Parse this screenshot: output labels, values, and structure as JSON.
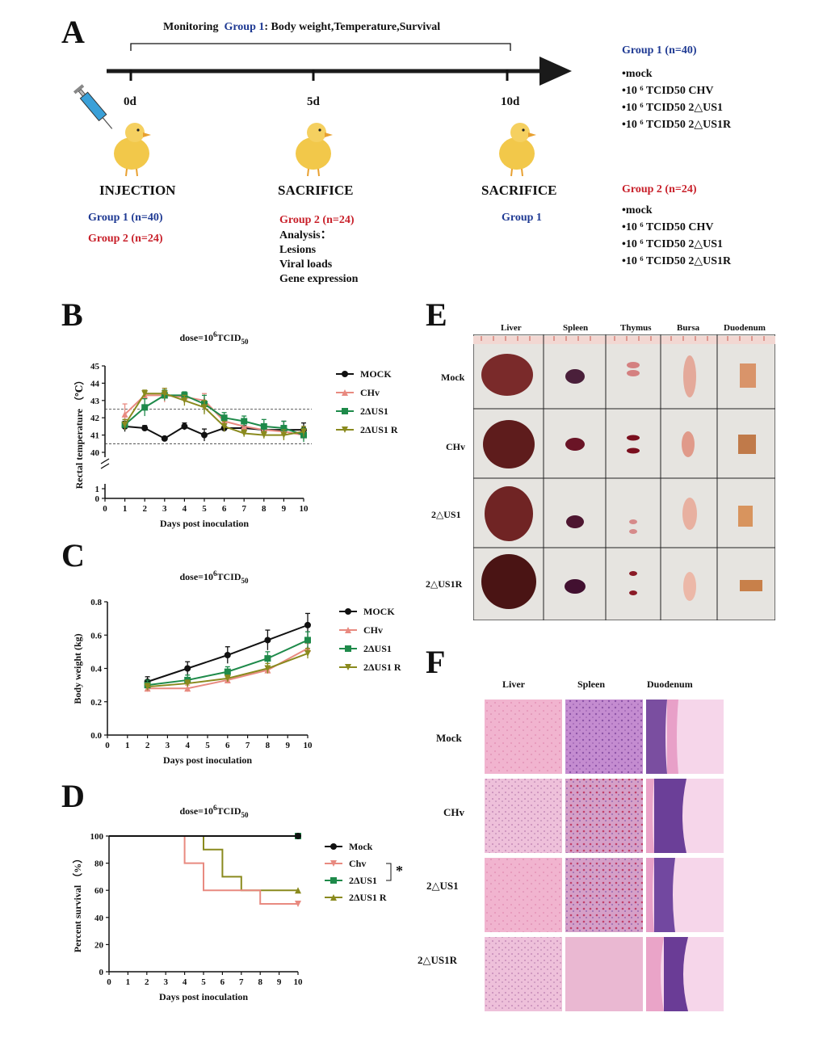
{
  "panel_labels": {
    "a": "A",
    "b": "B",
    "c": "C",
    "d": "D",
    "e": "E",
    "f": "F"
  },
  "panel_a": {
    "monitoring_prefix": "Monitoring",
    "monitoring_group": "Group 1",
    "monitoring_suffix": ": Body weight,Temperature,Survival",
    "timepoints": [
      "0d",
      "5d",
      "10d"
    ],
    "injection": {
      "title": "INJECTION",
      "g1": "Group 1 (n=40)",
      "g2": "Group 2 (n=24)"
    },
    "sacrifice5": {
      "title": "SACRIFICE",
      "group": "Group 2 (n=24)",
      "lines": [
        "Analysis：",
        "Lesions",
        "Viral loads",
        "Gene expression"
      ]
    },
    "sacrifice10": {
      "title": "SACRIFICE",
      "group": "Group 1"
    },
    "legend_group1": {
      "title": "Group 1 (n=40)",
      "items": [
        "•mock",
        "•10 ⁶ TCID50 CHV",
        "•10 ⁶ TCID50  2△US1",
        "•10 ⁶ TCID50  2△US1R"
      ]
    },
    "legend_group2": {
      "title": "Group 2 (n=24)",
      "items": [
        "•mock",
        "•10 ⁶ TCID50 CHV",
        "•10 ⁶ TCID50  2△US1",
        "•10 ⁶ TCID50  2△US1R"
      ]
    }
  },
  "colors": {
    "mock": "#111111",
    "chv": "#e88a80",
    "us1": "#1e8a4a",
    "us1r": "#8a8a1e",
    "navy": "#1f3a93",
    "red": "#c8202a"
  },
  "chart_data": [
    {
      "panel": "B",
      "type": "line",
      "title_base": "dose=10",
      "title_sup": "6",
      "title_unit": "TCID",
      "title_sub": "50",
      "xlabel": "Days post inoculation",
      "ylabel": "Rectal temperature （℃）",
      "x": [
        1,
        2,
        3,
        4,
        5,
        6,
        7,
        8,
        9,
        10
      ],
      "xlim": [
        0,
        10
      ],
      "yticks_upper": [
        40,
        41,
        42,
        43,
        44,
        45
      ],
      "yticks_lower": [
        0,
        1
      ],
      "reference_lines": [
        42.5,
        40.5
      ],
      "series": [
        {
          "name": "MOCK",
          "key": "mock",
          "marker": "circle",
          "values": [
            41.5,
            41.4,
            40.8,
            41.5,
            41.0,
            41.4,
            41.4,
            41.3,
            41.3,
            41.3
          ],
          "err": [
            0.3,
            0.15,
            0.05,
            0.2,
            0.35,
            0.2,
            0.15,
            0.3,
            0.5,
            0.4
          ]
        },
        {
          "name": "CHv",
          "key": "chv",
          "marker": "triangle-up",
          "values": [
            42.2,
            43.3,
            43.3,
            43.2,
            43.0,
            41.8,
            41.5,
            41.3,
            41.2,
            41.0
          ],
          "err": [
            0.6,
            0.25,
            0.4,
            0.3,
            0.4,
            0.3,
            0.3,
            0.3,
            0.3,
            0.3
          ]
        },
        {
          "name": "2ΔUS1",
          "key": "us1",
          "marker": "square",
          "values": [
            41.6,
            42.6,
            43.3,
            43.3,
            42.8,
            42.0,
            41.8,
            41.5,
            41.4,
            41.0
          ],
          "err": [
            0.3,
            0.5,
            0.3,
            0.2,
            0.5,
            0.3,
            0.3,
            0.4,
            0.4,
            0.4
          ]
        },
        {
          "name": "2ΔUS1 R",
          "key": "us1r",
          "marker": "triangle-down",
          "values": [
            41.6,
            43.4,
            43.4,
            43.0,
            42.6,
            41.5,
            41.1,
            41.0,
            41.0,
            41.2
          ],
          "err": [
            0.3,
            0.2,
            0.3,
            0.3,
            0.4,
            0.3,
            0.2,
            0.2,
            0.3,
            0.3
          ]
        }
      ]
    },
    {
      "panel": "C",
      "type": "line",
      "title_base": "dose=10",
      "title_sup": "6",
      "title_unit": "TCID",
      "title_sub": "50",
      "xlabel": "Days post inoculation",
      "ylabel": "Body weight  (kg)",
      "x": [
        2,
        4,
        6,
        8,
        10
      ],
      "xlim": [
        0,
        10
      ],
      "ylim": [
        0.0,
        0.8
      ],
      "yticks": [
        "0.0",
        "0.2",
        "0.4",
        "0.6",
        "0.8"
      ],
      "series": [
        {
          "name": "MOCK",
          "key": "mock",
          "marker": "circle",
          "values": [
            0.32,
            0.4,
            0.48,
            0.57,
            0.66
          ],
          "err": [
            0.03,
            0.04,
            0.05,
            0.06,
            0.07
          ]
        },
        {
          "name": "CHv",
          "key": "chv",
          "marker": "triangle-up",
          "values": [
            0.28,
            0.28,
            0.33,
            0.39,
            0.52
          ],
          "err": [
            0.02,
            0.02,
            0.02,
            0.02,
            0.03
          ]
        },
        {
          "name": "2ΔUS1",
          "key": "us1",
          "marker": "square",
          "values": [
            0.3,
            0.33,
            0.38,
            0.46,
            0.57
          ],
          "err": [
            0.03,
            0.03,
            0.03,
            0.04,
            0.05
          ]
        },
        {
          "name": "2ΔUS1 R",
          "key": "us1r",
          "marker": "triangle-down",
          "values": [
            0.29,
            0.31,
            0.34,
            0.4,
            0.49
          ],
          "err": [
            0.02,
            0.02,
            0.02,
            0.03,
            0.03
          ]
        }
      ]
    },
    {
      "panel": "D",
      "type": "line",
      "title_base": "dose=10",
      "title_sup": "6",
      "title_unit": "TCID",
      "title_sub": "50",
      "xlabel": "Days post inoculation",
      "ylabel": "Percent survival （%）",
      "xlim": [
        0,
        10
      ],
      "ylim": [
        0,
        100
      ],
      "yticks": [
        "0",
        "20",
        "40",
        "60",
        "80",
        "100"
      ],
      "significance": "*",
      "series": [
        {
          "name": "Mock",
          "key": "mock",
          "marker": "circle",
          "steps": [
            [
              0,
              100
            ],
            [
              10,
              100
            ]
          ]
        },
        {
          "name": "Chv",
          "key": "chv",
          "marker": "triangle-down",
          "steps": [
            [
              0,
              100
            ],
            [
              4,
              100
            ],
            [
              4,
              80
            ],
            [
              5,
              80
            ],
            [
              5,
              60
            ],
            [
              8,
              60
            ],
            [
              8,
              50
            ],
            [
              10,
              50
            ]
          ]
        },
        {
          "name": "2ΔUS1",
          "key": "us1",
          "marker": "square",
          "steps": [
            [
              0,
              100
            ],
            [
              10,
              100
            ]
          ]
        },
        {
          "name": "2ΔUS1 R",
          "key": "us1r",
          "marker": "triangle-up",
          "steps": [
            [
              0,
              100
            ],
            [
              5,
              100
            ],
            [
              5,
              90
            ],
            [
              6,
              90
            ],
            [
              6,
              70
            ],
            [
              7,
              70
            ],
            [
              7,
              60
            ],
            [
              10,
              60
            ]
          ]
        }
      ]
    }
  ],
  "panel_e": {
    "columns": [
      "Liver",
      "Spleen",
      "Thymus",
      "Bursa",
      "Duodenum"
    ],
    "rows": [
      "Mock",
      "CHv",
      "2△US1",
      "2△US1R"
    ]
  },
  "panel_f": {
    "columns": [
      "Liver",
      "Spleen",
      "Duodenum"
    ],
    "rows": [
      "Mock",
      "CHv",
      "2△US1",
      "2△US1R"
    ]
  }
}
